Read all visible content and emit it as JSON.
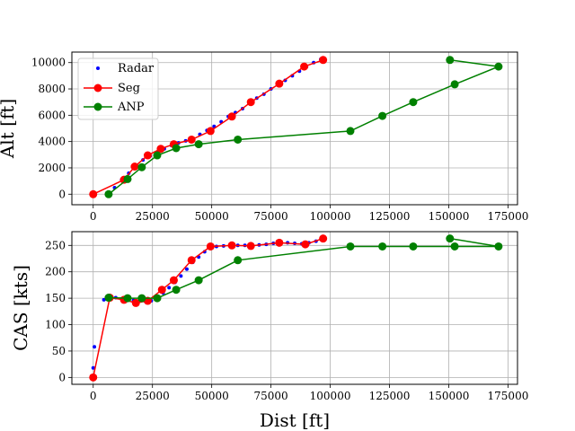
{
  "chart_data": [
    {
      "type": "line",
      "xlabel": "",
      "ylabel": "Alt [ft]",
      "xlim": [
        -9000,
        179000
      ],
      "ylim": [
        -800,
        10800
      ],
      "xticks": [
        0,
        25000,
        50000,
        75000,
        100000,
        125000,
        150000,
        175000
      ],
      "xtick_labels": [
        "0",
        "25000",
        "50000",
        "75000",
        "100000",
        "125000",
        "150000",
        "175000"
      ],
      "yticks": [
        0,
        2000,
        4000,
        6000,
        8000,
        10000
      ],
      "ytick_labels": [
        "0",
        "2000",
        "4000",
        "6000",
        "8000",
        "10000"
      ],
      "grid": true,
      "legend": {
        "placement": "top-left",
        "entries": [
          "Radar",
          "Seg",
          "ANP"
        ]
      },
      "series": [
        {
          "name": "Radar",
          "style": "points",
          "color": "#0000ff",
          "x": [
            6000,
            9000,
            12000,
            15000,
            18000,
            21000,
            24000,
            27000,
            30000,
            33000,
            36000,
            39000,
            42000,
            45000,
            48000,
            51000,
            54000,
            57000,
            60000,
            63000,
            66000,
            69000,
            72000,
            75000,
            78000,
            81000,
            84000,
            87000,
            90000,
            93000,
            96000
          ],
          "y": [
            0,
            500,
            1100,
            1600,
            2100,
            2600,
            2900,
            3200,
            3450,
            3700,
            3900,
            4050,
            4250,
            4550,
            4850,
            5150,
            5500,
            5900,
            6200,
            6500,
            6900,
            7300,
            7600,
            8000,
            8300,
            8650,
            9000,
            9350,
            9700,
            10000,
            10250
          ]
        },
        {
          "name": "Seg",
          "style": "line-marker",
          "color": "#ff0000",
          "x": [
            0,
            13000,
            17500,
            23000,
            28500,
            34000,
            41500,
            49500,
            58500,
            66500,
            78500,
            89000,
            97000
          ],
          "y": [
            0,
            1100,
            2100,
            2950,
            3450,
            3800,
            4150,
            4800,
            5900,
            7000,
            8400,
            9700,
            10200
          ]
        },
        {
          "name": "ANP",
          "style": "line-marker",
          "color": "#008000",
          "x": [
            6500,
            14500,
            20500,
            27000,
            35000,
            44500,
            61000,
            108500,
            122000,
            135000,
            152500,
            171000,
            150500
          ],
          "y": [
            0,
            1150,
            2050,
            2950,
            3500,
            3800,
            4150,
            4800,
            5950,
            7000,
            8350,
            9700,
            10200
          ]
        }
      ]
    },
    {
      "type": "line",
      "xlabel": "Dist [ft]",
      "ylabel": "CAS [kts]",
      "xlim": [
        -9000,
        179000
      ],
      "ylim": [
        -13,
        276
      ],
      "xticks": [
        0,
        25000,
        50000,
        75000,
        100000,
        125000,
        150000,
        175000
      ],
      "xtick_labels": [
        "0",
        "25000",
        "50000",
        "75000",
        "100000",
        "125000",
        "150000",
        "175000"
      ],
      "yticks": [
        0,
        50,
        100,
        150,
        200,
        250
      ],
      "ytick_labels": [
        "0",
        "50",
        "100",
        "150",
        "200",
        "250"
      ],
      "grid": true,
      "series": [
        {
          "name": "Radar",
          "style": "points",
          "color": "#0000ff",
          "x": [
            0,
            500,
            4500,
            7000,
            9500,
            12000,
            14500,
            17000,
            19500,
            22000,
            24500,
            27000,
            29500,
            32000,
            34500,
            37000,
            39500,
            42000,
            44500,
            47000,
            49500,
            52000,
            55000,
            58000,
            61000,
            64000,
            67000,
            70000,
            73000,
            76000,
            79000,
            82000,
            85000,
            88000,
            91000,
            94000,
            97000
          ],
          "y": [
            18,
            58,
            147,
            150,
            151,
            149,
            147,
            146,
            145,
            144,
            145,
            150,
            160,
            170,
            180,
            192,
            205,
            218,
            228,
            238,
            245,
            248,
            249,
            250,
            250,
            250,
            250,
            251,
            252,
            254,
            255,
            255,
            254,
            253,
            255,
            258,
            262
          ]
        },
        {
          "name": "Seg",
          "style": "line-marker",
          "color": "#ff0000",
          "x": [
            0,
            7000,
            13000,
            18000,
            23000,
            29000,
            34000,
            41500,
            49500,
            58500,
            66500,
            78500,
            89500,
            97000
          ],
          "y": [
            0,
            151,
            147,
            141,
            145,
            166,
            184,
            222,
            248,
            250,
            249,
            255,
            252,
            263
          ]
        },
        {
          "name": "ANP",
          "style": "line-marker",
          "color": "#008000",
          "x": [
            6500,
            14500,
            20500,
            27000,
            35000,
            44500,
            61000,
            108500,
            122000,
            135000,
            152500,
            171000,
            150500
          ],
          "y": [
            151,
            150,
            150,
            150,
            166,
            184,
            222,
            248,
            248,
            248,
            248,
            248,
            263
          ]
        }
      ]
    }
  ]
}
